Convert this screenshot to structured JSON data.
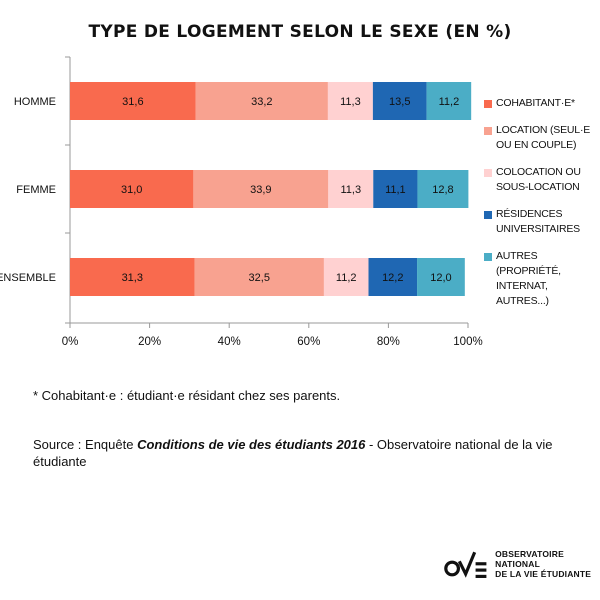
{
  "chart_data": {
    "type": "bar",
    "orientation": "horizontal",
    "stacked": true,
    "title": "TYPE DE LOGEMENT SELON LE SEXE (EN %)",
    "categories": [
      "HOMME",
      "FEMME",
      "ENSEMBLE"
    ],
    "series": [
      {
        "name": "COHABITANT·E*",
        "color": "#f96a4e",
        "values": [
          31.6,
          31.0,
          31.3
        ],
        "labels": [
          "31,6",
          "31,0",
          "31,3"
        ]
      },
      {
        "name": "LOCATION (SEUL·E OU EN COUPLE)",
        "color": "#f8a290",
        "values": [
          33.2,
          33.9,
          32.5
        ],
        "labels": [
          "33,2",
          "33,9",
          "32,5"
        ]
      },
      {
        "name": "COLOCATION OU SOUS-LOCATION",
        "color": "#ffd1d1",
        "values": [
          11.3,
          11.3,
          11.2
        ],
        "labels": [
          "11,3",
          "11,3",
          "11,2"
        ]
      },
      {
        "name": "RÉSIDENCES UNIVERSITAIRES",
        "color": "#1f67b3",
        "values": [
          13.5,
          11.1,
          12.2
        ],
        "labels": [
          "13,5",
          "11,1",
          "12,2"
        ]
      },
      {
        "name": "AUTRES (PROPRIÉTÉ, INTERNAT, AUTRES...)",
        "color": "#4badc6",
        "values": [
          11.2,
          12.8,
          12.0
        ],
        "labels": [
          "11,2",
          "12,8",
          "12,0"
        ]
      }
    ],
    "xlim": [
      0,
      100
    ],
    "xticks": [
      "0%",
      "20%",
      "40%",
      "60%",
      "80%",
      "100%"
    ],
    "grid": false,
    "legend_position": "right"
  },
  "legend_labels": [
    "COHABITANT·E*",
    "LOCATION (SEUL·E\nOU EN COUPLE)",
    "COLOCATION OU\nSOUS-LOCATION",
    "RÉSIDENCES\nUNIVERSITAIRES",
    "AUTRES (PROPRIÉTÉ,\nINTERNAT, AUTRES...)"
  ],
  "footnote": "* Cohabitant·e : étudiant·e résidant chez ses parents.",
  "source": {
    "prefix": "Source : Enquête ",
    "title": "Conditions de vie des étudiants 2016",
    "suffix": " - Observatoire national de la vie étudiante"
  },
  "logo": {
    "line1": "OBSERVATOIRE NATIONAL",
    "line2": "DE LA VIE ÉTUDIANTE"
  }
}
